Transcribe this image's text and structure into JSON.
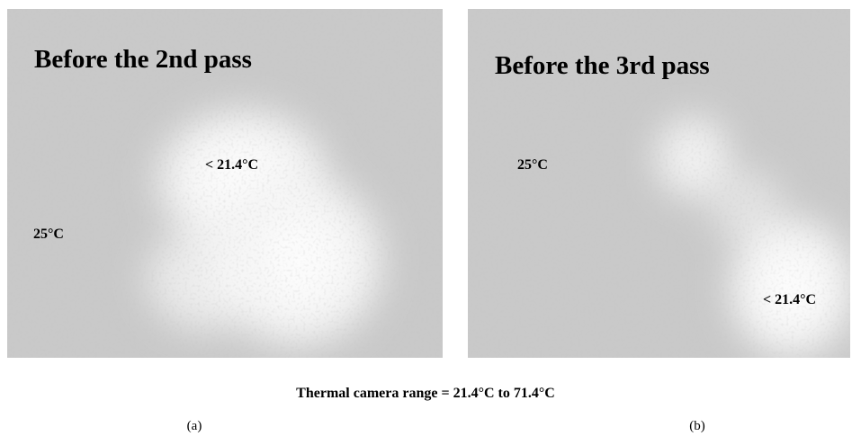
{
  "panels": [
    {
      "title": "Before the 2nd pass",
      "labels": [
        "< 21.4°C",
        "25°C"
      ],
      "caption": "(a)"
    },
    {
      "title": "Before the 3rd pass",
      "labels": [
        "25°C",
        "< 21.4°C"
      ],
      "caption": "(b)"
    }
  ],
  "caption": "Thermal camera range = 21.4°C to 71.4°C"
}
